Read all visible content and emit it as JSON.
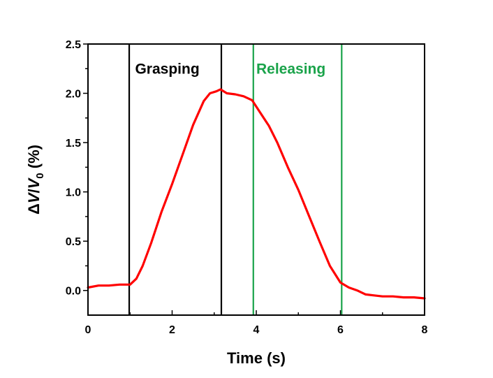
{
  "chart_data": {
    "type": "line",
    "xlabel": "Time (s)",
    "ylabel": {
      "delta": "Δ",
      "v": "V",
      "slash": "/",
      "v0": "V",
      "sub": "0",
      "unit": " (%)"
    },
    "xlim": [
      0,
      8
    ],
    "ylim": [
      -0.25,
      2.5
    ],
    "x_ticks": [
      0,
      2,
      4,
      6,
      8
    ],
    "y_ticks": [
      0.0,
      0.5,
      1.0,
      1.5,
      2.0,
      2.5
    ],
    "x_tick_labels": [
      "0",
      "2",
      "4",
      "6",
      "8"
    ],
    "y_tick_labels": [
      "0.0",
      "0.5",
      "1.0",
      "1.5",
      "2.0",
      "2.5"
    ],
    "grid": false,
    "series": [
      {
        "color": "#ff0000",
        "x": [
          0,
          0.25,
          0.5,
          0.75,
          1.0,
          1.15,
          1.3,
          1.5,
          1.75,
          2.0,
          2.25,
          2.5,
          2.75,
          2.9,
          3.05,
          3.15,
          3.3,
          3.5,
          3.7,
          3.9,
          4.1,
          4.3,
          4.5,
          4.75,
          5.0,
          5.25,
          5.5,
          5.75,
          6.0,
          6.2,
          6.4,
          6.6,
          6.8,
          7.0,
          7.25,
          7.5,
          7.75,
          8.0
        ],
        "y": [
          0.03,
          0.05,
          0.05,
          0.06,
          0.06,
          0.12,
          0.25,
          0.48,
          0.8,
          1.08,
          1.38,
          1.68,
          1.92,
          2.0,
          2.02,
          2.04,
          2.0,
          1.99,
          1.97,
          1.93,
          1.8,
          1.67,
          1.5,
          1.25,
          1.02,
          0.76,
          0.5,
          0.25,
          0.08,
          0.03,
          0.0,
          -0.04,
          -0.05,
          -0.06,
          -0.06,
          -0.07,
          -0.07,
          -0.08
        ]
      }
    ],
    "vertical_lines": [
      {
        "x": 0.98,
        "color": "#000000"
      },
      {
        "x": 3.17,
        "color": "#000000"
      },
      {
        "x": 3.93,
        "color": "#1aa34a"
      },
      {
        "x": 6.03,
        "color": "#1aa34a"
      }
    ],
    "annotations": [
      {
        "text": "Grasping",
        "x": 1.12,
        "y": 2.2,
        "color": "#000000"
      },
      {
        "text": "Releasing",
        "x": 4.0,
        "y": 2.2,
        "color": "#1aa34a"
      }
    ]
  }
}
